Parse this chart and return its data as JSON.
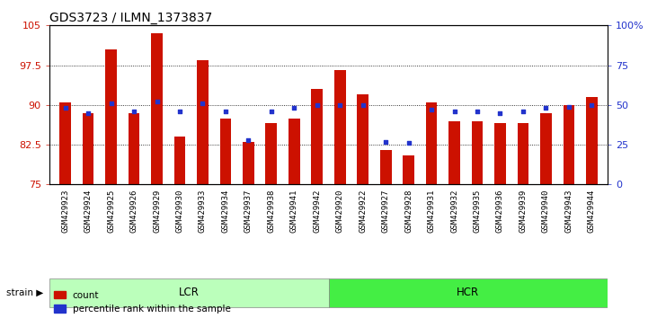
{
  "title": "GDS3723 / ILMN_1373837",
  "samples": [
    "GSM429923",
    "GSM429924",
    "GSM429925",
    "GSM429926",
    "GSM429929",
    "GSM429930",
    "GSM429933",
    "GSM429934",
    "GSM429937",
    "GSM429938",
    "GSM429941",
    "GSM429942",
    "GSM429920",
    "GSM429922",
    "GSM429927",
    "GSM429928",
    "GSM429931",
    "GSM429932",
    "GSM429935",
    "GSM429936",
    "GSM429939",
    "GSM429940",
    "GSM429943",
    "GSM429944"
  ],
  "count_values": [
    90.5,
    88.5,
    100.5,
    88.5,
    103.5,
    84.0,
    98.5,
    87.5,
    83.0,
    86.5,
    87.5,
    93.0,
    96.5,
    92.0,
    81.5,
    80.5,
    90.5,
    87.0,
    87.0,
    86.5,
    86.5,
    88.5,
    90.0,
    91.5
  ],
  "percentile_rank": [
    48,
    45,
    51,
    46,
    52,
    46,
    51,
    46,
    28,
    46,
    48,
    50,
    50,
    50,
    27,
    26,
    47,
    46,
    46,
    45,
    46,
    48,
    49,
    50
  ],
  "lcr_count": 12,
  "hcr_count": 12,
  "ylim_left": [
    75,
    105
  ],
  "ylim_right": [
    0,
    100
  ],
  "yticks_left": [
    75,
    82.5,
    90,
    97.5,
    105
  ],
  "ytick_labels_left": [
    "75",
    "82.5",
    "90",
    "97.5",
    "105"
  ],
  "yticks_right": [
    0,
    25,
    50,
    75,
    100
  ],
  "ytick_labels_right": [
    "0",
    "25",
    "50",
    "75",
    "100%"
  ],
  "bar_color": "#CC1100",
  "dot_color": "#2233CC",
  "bar_bottom": 75,
  "lcr_color": "#BBFFBB",
  "hcr_color": "#44EE44",
  "lcr_label": "LCR",
  "hcr_label": "HCR",
  "strain_label": "strain",
  "legend_count": "count",
  "legend_pct": "percentile rank within the sample",
  "bar_width": 0.5,
  "title_fontsize": 10,
  "tick_fontsize": 6.5,
  "axis_color_left": "#CC1100",
  "axis_color_right": "#2233CC"
}
